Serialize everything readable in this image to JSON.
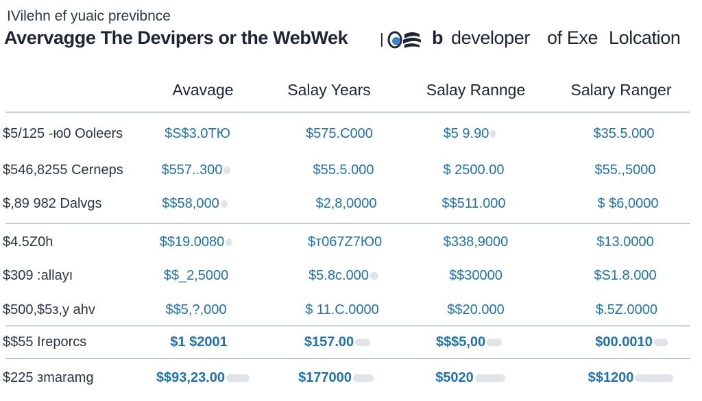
{
  "subtitle": "IVilehn ef yuaic previbnce",
  "title": {
    "part1": "Avervagge The Devipers or the WebWek",
    "part2": "b",
    "part3": "developer",
    "part4": "of Exe",
    "part5": "Lolcation"
  },
  "headers": [
    "Avavage",
    "Salay Years",
    "Salay Rannge",
    "Salary Ranger"
  ],
  "rows": [
    {
      "label": "$5/125 -ю0 Ooleers",
      "values": [
        "$S$3.0ТЮ",
        "$575.С000",
        "$5 9.90",
        "$35.5.000"
      ]
    },
    {
      "label": "$546,8255 Cerneps",
      "values": [
        "$557..300",
        "$55.5.000",
        "$  2500.00",
        "$55.,5000"
      ]
    },
    {
      "label": "$,89 982 Dalvgs",
      "values": [
        "$$58,000",
        "$2,8,0000",
        "$$511.000",
        "$ $6,0000"
      ]
    },
    {
      "label": "$4.5Z0h",
      "values": [
        "$$19.0080",
        "$т067Z7Ю0",
        "$338,9000",
        "$13.0000"
      ]
    },
    {
      "label": "$309 :allayı",
      "values": [
        "$$_2,5000",
        "$5.8с.000",
        "$$30000",
        "$S1.8.000"
      ]
    },
    {
      "label": "$500,$5з,y ahv",
      "values": [
        "$$5,?,000",
        "$ 11.С.0000",
        "$$20.000",
        "$.5Z.0000"
      ]
    },
    {
      "label": "$$55  Ireporcs",
      "values": [
        "$1 $2001",
        "$157.00",
        "$$$5,00",
        "$00.0010"
      ]
    },
    {
      "label": "$225 зmaramg",
      "values": [
        "$$93,23.00",
        "$177000",
        "$5020",
        "$$1200"
      ]
    }
  ]
}
